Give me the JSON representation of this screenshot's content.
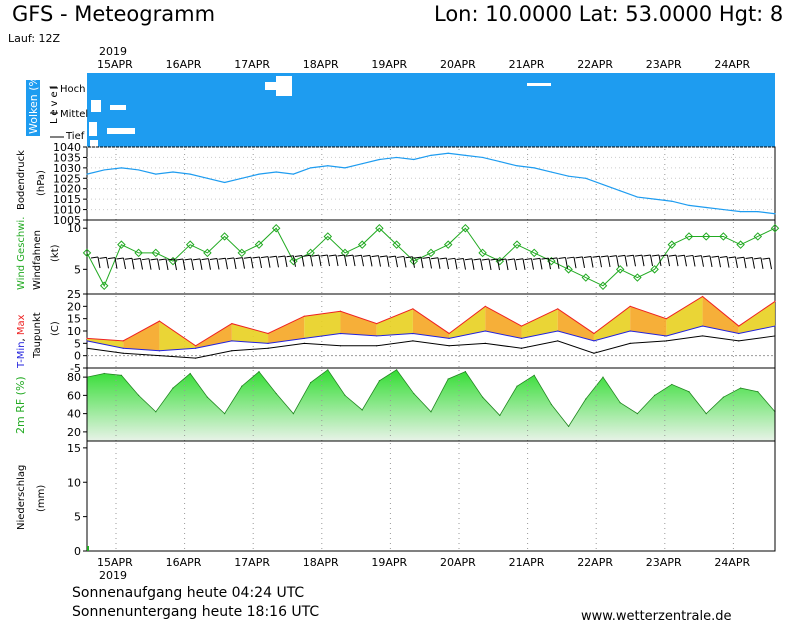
{
  "header": {
    "title": "GFS - Meteogramm",
    "location": "Lon: 10.0000  Lat: 53.0000  Hgt: 8",
    "run": "Lauf: 12Z",
    "year": "2019"
  },
  "footer": {
    "sunrise": "Sonnenaufgang heute 04:24 UTC",
    "sunset": "Sonnenuntergang heute 18:16 UTC",
    "site": "www.wetterzentrale.de"
  },
  "colors": {
    "cloud_bg": "#1e9cf0",
    "pressure_line": "#1e9cf0",
    "wind_line": "#22aa22",
    "tmin": "#2222dd",
    "tmax": "#ee2222",
    "dewpoint": "#000000",
    "rh_fill": "#33dd33"
  },
  "chart_data": [
    {
      "type": "area",
      "title": "Wolken (%)",
      "ylabel": "Level",
      "levels": [
        "Hoch",
        "Mittel",
        "Tief"
      ],
      "categories": [
        "15APR",
        "16APR",
        "17APR",
        "18APR",
        "19APR",
        "20APR",
        "21APR",
        "22APR",
        "23APR",
        "24APR"
      ]
    },
    {
      "type": "line",
      "ylabel": "Bodendruck (hPa)",
      "ylim": [
        1005,
        1040
      ],
      "yticks": [
        1005,
        1010,
        1015,
        1020,
        1025,
        1030,
        1035,
        1040
      ],
      "x": [
        0,
        0.5,
        1,
        1.5,
        2,
        2.5,
        3,
        3.5,
        4,
        4.5,
        5,
        5.5,
        6,
        6.5,
        7,
        7.5,
        8,
        8.5,
        9,
        9.5,
        10,
        10.5,
        11,
        11.5,
        12,
        12.5,
        13,
        13.5,
        14,
        14.5,
        15,
        15.5,
        16,
        16.5,
        17,
        17.5,
        18,
        18.5,
        19,
        19.5,
        20
      ],
      "values": [
        1027,
        1029,
        1030,
        1029,
        1027,
        1028,
        1027,
        1025,
        1023,
        1025,
        1027,
        1028,
        1027,
        1030,
        1031,
        1030,
        1032,
        1034,
        1035,
        1034,
        1036,
        1037,
        1036,
        1035,
        1033,
        1031,
        1030,
        1028,
        1026,
        1025,
        1022,
        1019,
        1016,
        1015,
        1014,
        1012,
        1011,
        1010,
        1009,
        1009,
        1008
      ]
    },
    {
      "type": "line",
      "ylabel": "Wind Geschwi. / Windfahnen (kt)",
      "yticks": [
        5,
        10
      ],
      "ylim": [
        2,
        11
      ],
      "x": [
        0,
        0.5,
        1,
        1.5,
        2,
        2.5,
        3,
        3.5,
        4,
        4.5,
        5,
        5.5,
        6,
        6.5,
        7,
        7.5,
        8,
        8.5,
        9,
        9.5,
        10,
        10.5,
        11,
        11.5,
        12,
        12.5,
        13,
        13.5,
        14,
        14.5,
        15,
        15.5,
        16,
        16.5,
        17,
        17.5,
        18,
        18.5,
        19,
        19.5,
        20
      ],
      "values": [
        7,
        3,
        8,
        7,
        7,
        6,
        8,
        7,
        9,
        7,
        8,
        10,
        6,
        7,
        9,
        7,
        8,
        10,
        8,
        6,
        7,
        8,
        10,
        7,
        6,
        8,
        7,
        6,
        5,
        4,
        3,
        5,
        4,
        5,
        8,
        9,
        9,
        9,
        8,
        9,
        10
      ]
    },
    {
      "type": "line",
      "ylabel": "T-Min, Max / Taupunkt (C)",
      "ylim": [
        -5,
        25
      ],
      "yticks": [
        -5,
        0,
        5,
        10,
        15,
        20,
        25
      ],
      "series": [
        {
          "name": "T-Max",
          "values": [
            7,
            6,
            14,
            4,
            13,
            9,
            16,
            18,
            13,
            19,
            9,
            20,
            12,
            19,
            9,
            20,
            15,
            24,
            12,
            22
          ]
        },
        {
          "name": "T-Min",
          "values": [
            6,
            3,
            2,
            3,
            6,
            5,
            7,
            9,
            8,
            9,
            7,
            10,
            7,
            10,
            6,
            10,
            8,
            12,
            9,
            12
          ]
        },
        {
          "name": "Taupunkt",
          "values": [
            3,
            1,
            0,
            -1,
            2,
            3,
            5,
            4,
            4,
            6,
            4,
            5,
            3,
            6,
            1,
            5,
            6,
            8,
            6,
            8
          ]
        }
      ],
      "x": [
        0,
        1,
        2,
        3,
        4,
        5,
        6,
        7,
        8,
        9,
        10,
        11,
        12,
        13,
        14,
        15,
        16,
        17,
        18,
        19
      ]
    },
    {
      "type": "area",
      "ylabel": "2m RF (%)",
      "ylim": [
        10,
        90
      ],
      "yticks": [
        20,
        40,
        60,
        80
      ],
      "x": [
        0,
        0.5,
        1,
        1.5,
        2,
        2.5,
        3,
        3.5,
        4,
        4.5,
        5,
        5.5,
        6,
        6.5,
        7,
        7.5,
        8,
        8.5,
        9,
        9.5,
        10,
        10.5,
        11,
        11.5,
        12,
        12.5,
        13,
        13.5,
        14,
        14.5,
        15,
        15.5,
        16,
        16.5,
        17,
        17.5,
        18,
        18.5,
        19,
        19.5,
        20
      ],
      "values": [
        80,
        84,
        82,
        60,
        42,
        68,
        84,
        58,
        40,
        70,
        86,
        62,
        40,
        74,
        88,
        60,
        44,
        76,
        88,
        62,
        42,
        78,
        86,
        58,
        38,
        70,
        82,
        50,
        26,
        56,
        80,
        52,
        40,
        60,
        72,
        64,
        40,
        58,
        68,
        64,
        42
      ]
    },
    {
      "type": "bar",
      "ylabel": "Niederschlag (mm)",
      "ylim": [
        0,
        16
      ],
      "yticks": [
        0,
        5,
        10,
        15
      ],
      "values": [
        0,
        0,
        0,
        0,
        0,
        0,
        0,
        0,
        0,
        0
      ]
    }
  ]
}
